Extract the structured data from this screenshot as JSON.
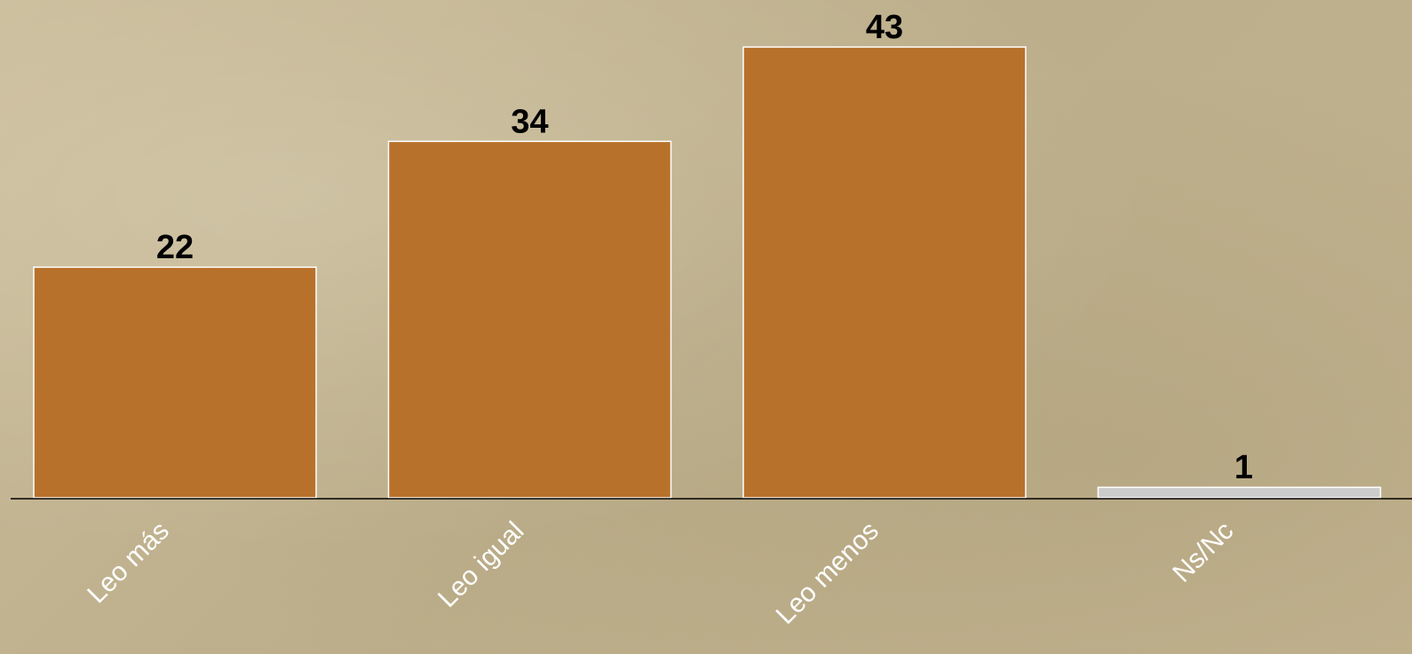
{
  "chart_data": {
    "type": "bar",
    "title": "",
    "xlabel": "",
    "ylabel": "",
    "categories": [
      "Leo más",
      "Leo igual",
      "Leo menos",
      "Ns/Nc"
    ],
    "values": [
      22,
      34,
      43,
      1
    ],
    "data_labels": [
      "22",
      "34",
      "43",
      "1"
    ],
    "ylim": [
      0,
      43
    ],
    "grid": false,
    "legend": "none",
    "colors": {
      "bars": [
        "#b8712a",
        "#b8712a",
        "#b8712a",
        "#cccccc"
      ],
      "bar_outline": "#ffffff",
      "axis": "#000000",
      "value_label": "#000000",
      "category_label": "#ffffff",
      "background": "#c4b592"
    }
  }
}
